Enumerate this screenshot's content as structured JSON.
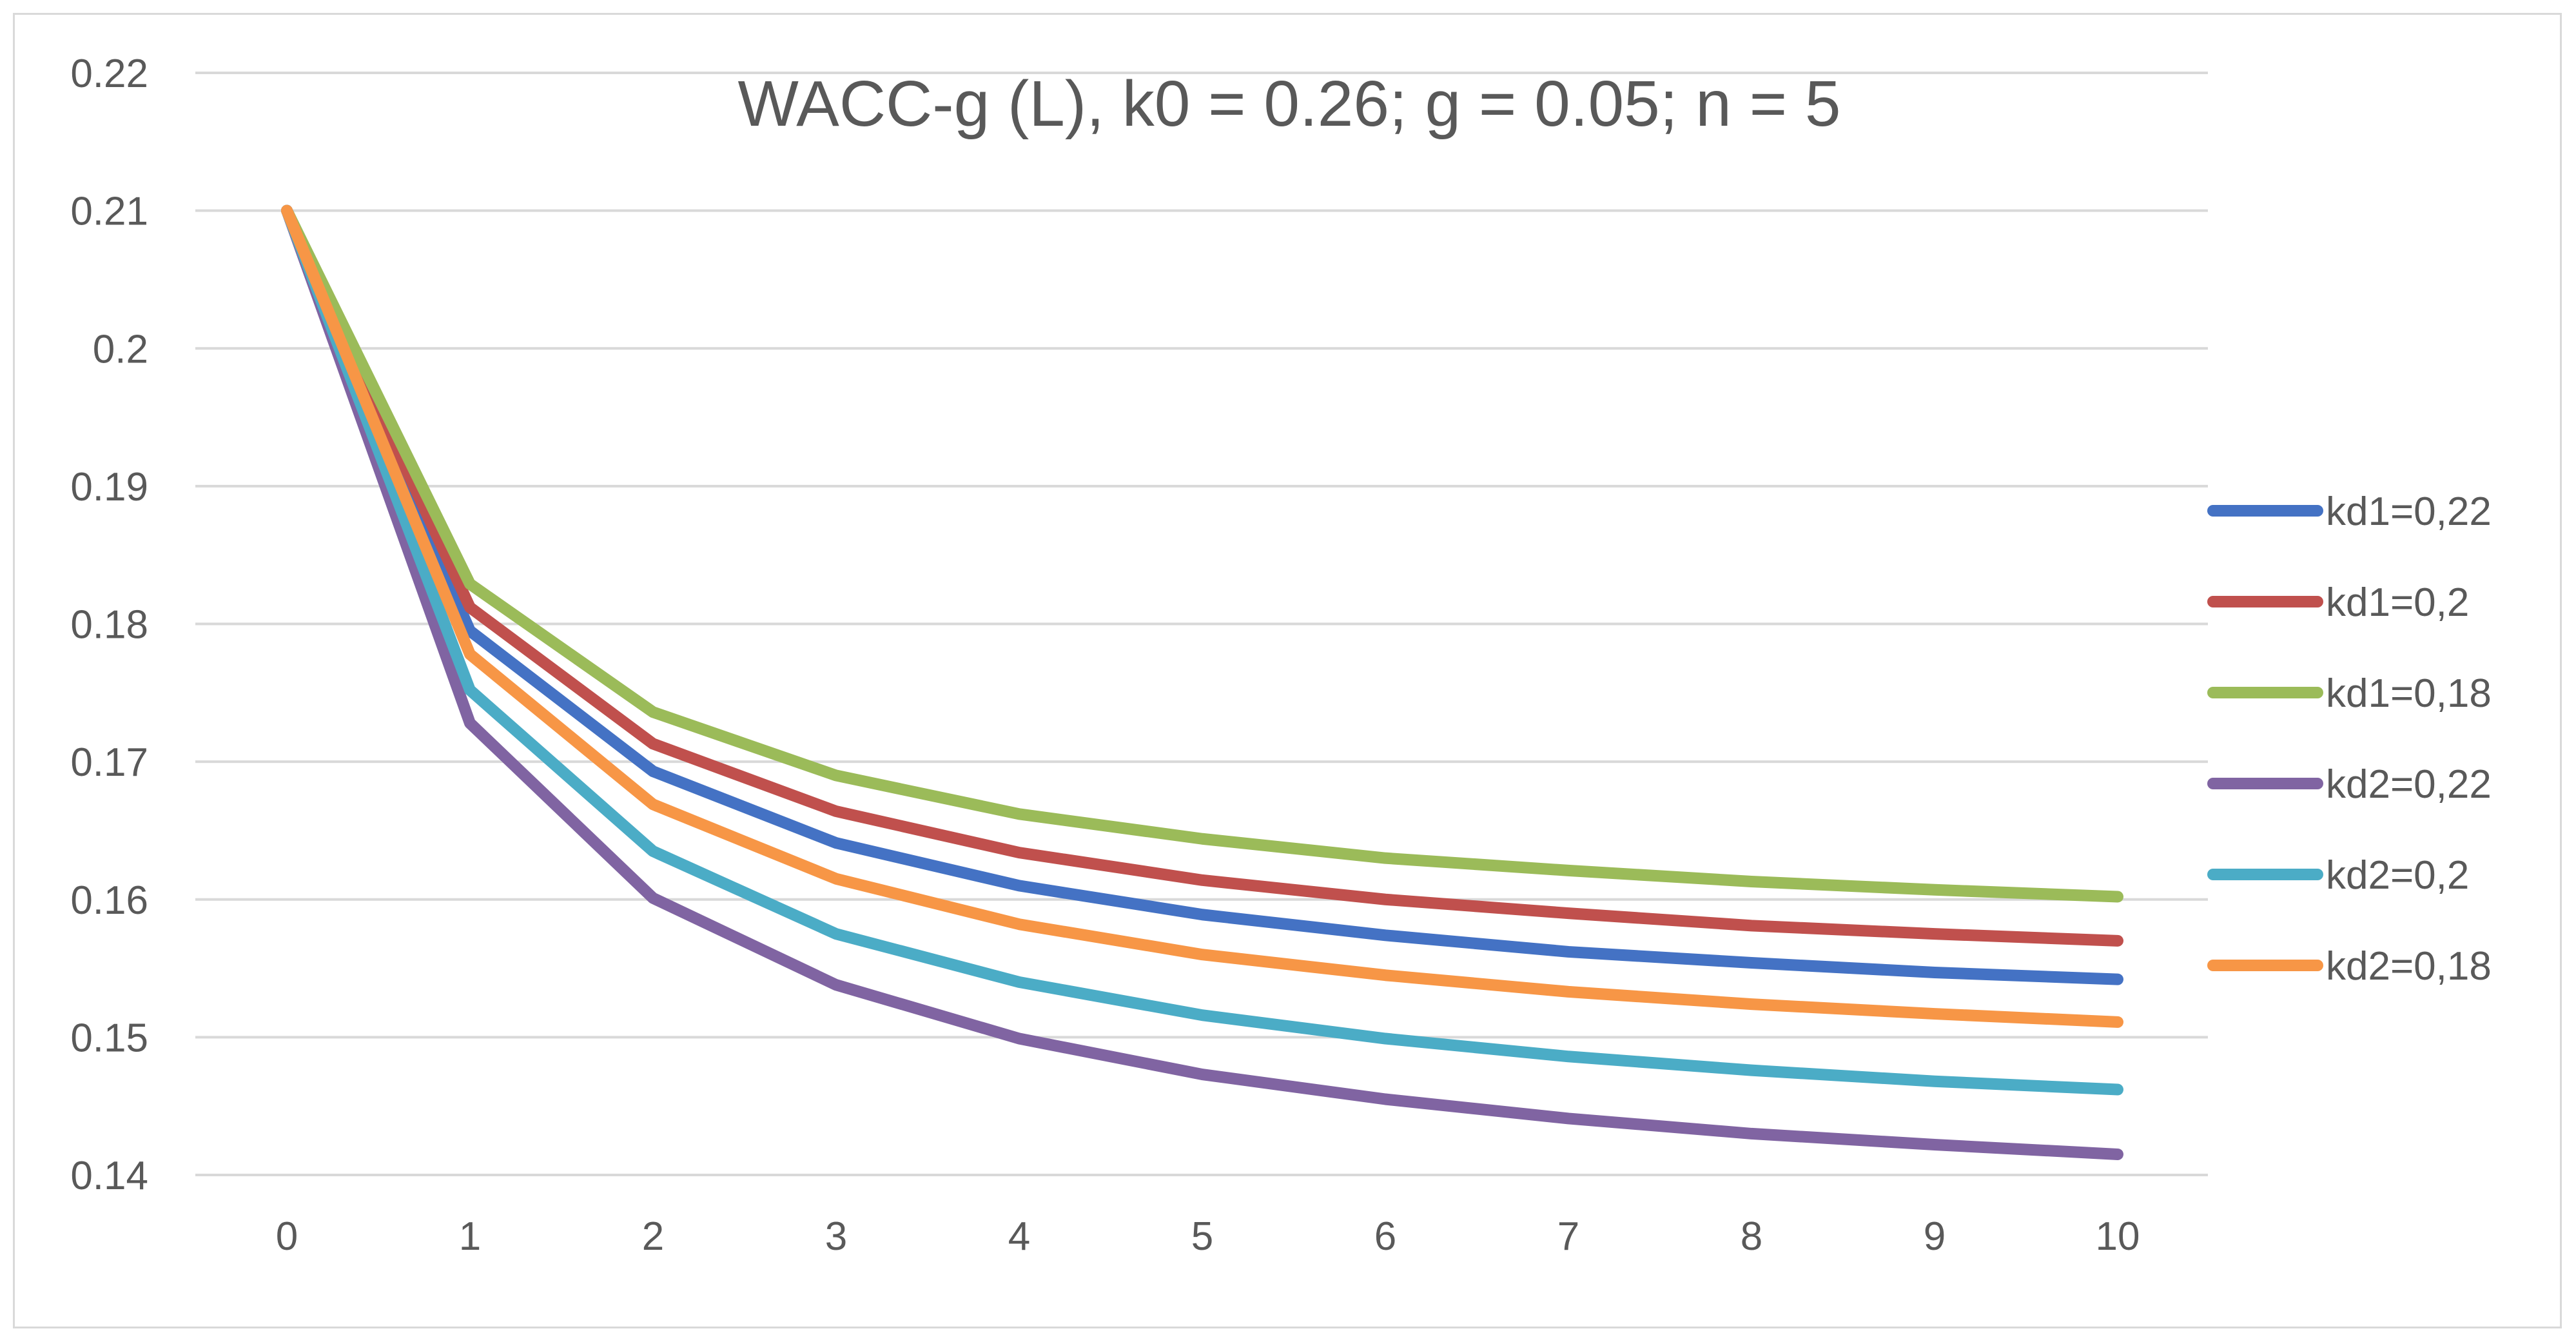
{
  "chart_data": {
    "type": "line",
    "title": "WACC-g (L), k0 = 0.26; g = 0.05; n = 5",
    "xlabel": "",
    "ylabel": "",
    "x": [
      0,
      1,
      2,
      3,
      4,
      5,
      6,
      7,
      8,
      9,
      10
    ],
    "xtick_labels": [
      "0",
      "1",
      "2",
      "3",
      "4",
      "5",
      "6",
      "7",
      "8",
      "9",
      "10"
    ],
    "ylim": [
      0.14,
      0.22
    ],
    "yticks": [
      0.14,
      0.15,
      0.16,
      0.17,
      0.18,
      0.19,
      0.2,
      0.21,
      0.22
    ],
    "ytick_labels": [
      "0.14",
      "0.15",
      "0.16",
      "0.17",
      "0.18",
      "0.19",
      "0.2",
      "0.21",
      "0.22"
    ],
    "grid": true,
    "legend_position": "right",
    "series": [
      {
        "name": "kd1=0,22",
        "color": "#4472C4",
        "values": [
          0.21,
          0.1795,
          0.1693,
          0.1641,
          0.161,
          0.1589,
          0.1574,
          0.1562,
          0.1554,
          0.1547,
          0.1542
        ]
      },
      {
        "name": "kd1=0,2",
        "color": "#C0504D",
        "values": [
          0.21,
          0.1812,
          0.1713,
          0.1664,
          0.1634,
          0.1614,
          0.16,
          0.159,
          0.1581,
          0.1575,
          0.157
        ]
      },
      {
        "name": "kd1=0,18",
        "color": "#9BBB59",
        "values": [
          0.21,
          0.1829,
          0.1736,
          0.169,
          0.1662,
          0.1644,
          0.163,
          0.1621,
          0.1613,
          0.1607,
          0.1602
        ]
      },
      {
        "name": "kd2=0,22",
        "color": "#8064A2",
        "values": [
          0.21,
          0.1728,
          0.1601,
          0.1538,
          0.1499,
          0.1473,
          0.1455,
          0.1441,
          0.143,
          0.1422,
          0.1415
        ]
      },
      {
        "name": "kd2=0,2",
        "color": "#4BACC6",
        "values": [
          0.21,
          0.1752,
          0.1635,
          0.1575,
          0.154,
          0.1516,
          0.1499,
          0.1486,
          0.1476,
          0.1468,
          0.1462
        ]
      },
      {
        "name": "kd2=0,18",
        "color": "#F79646",
        "values": [
          0.21,
          0.1778,
          0.1669,
          0.1615,
          0.1582,
          0.156,
          0.1545,
          0.1533,
          0.1524,
          0.1517,
          0.1511
        ]
      }
    ]
  }
}
